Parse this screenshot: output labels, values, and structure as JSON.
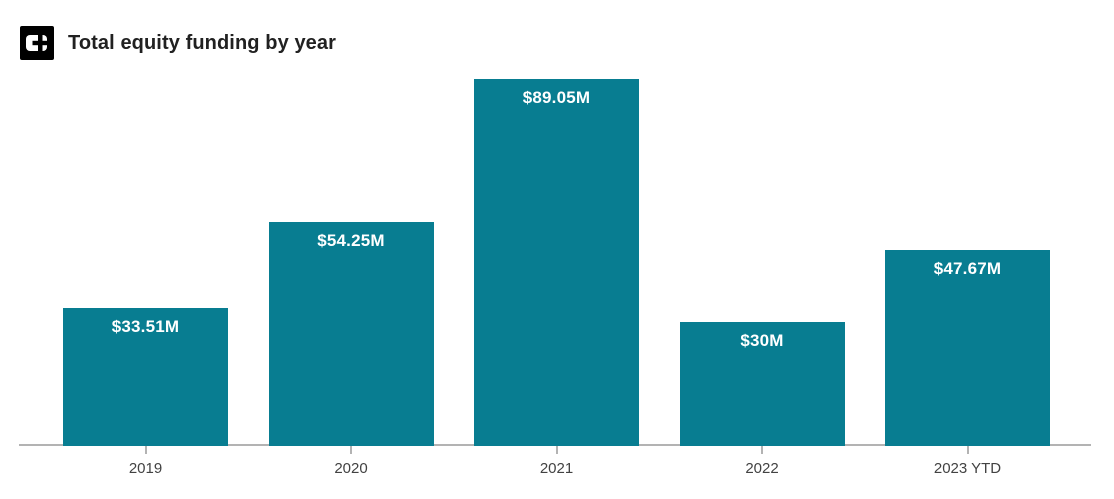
{
  "header": {
    "title": "Total equity funding by year",
    "logo_icon": "crunchbase-logo-icon"
  },
  "chart_data": {
    "type": "bar",
    "title": "Total equity funding by year",
    "categories": [
      "2019",
      "2020",
      "2021",
      "2022",
      "2023 YTD"
    ],
    "values": [
      33.51,
      54.25,
      89.05,
      30,
      47.67
    ],
    "value_labels": [
      "$33.51M",
      "$54.25M",
      "$89.05M",
      "$30M",
      "$47.67M"
    ],
    "xlabel": "",
    "ylabel": "",
    "ylim": [
      0,
      89.05
    ],
    "grid": false,
    "legend": false,
    "value_label_position": "inside-top",
    "colors": {
      "bar": "#087d91",
      "value_label": "#ffffff",
      "axis_line": "#b3b3b3",
      "tick_label": "#424242",
      "title": "#212121",
      "logo_bg": "#000000",
      "logo_glyph": "#ffffff"
    }
  }
}
